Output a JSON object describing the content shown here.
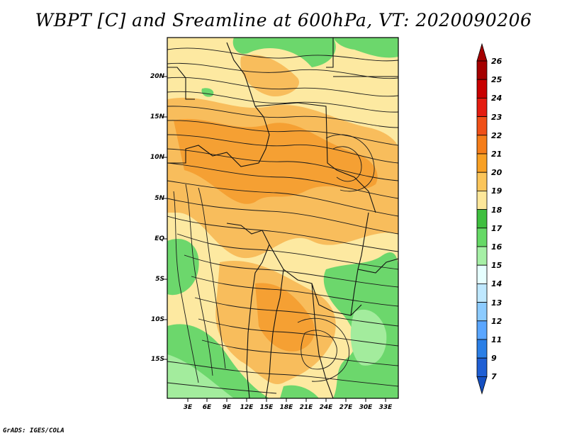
{
  "title": "WBPT [C] and Sreamline at 600hPa, VT: 2020090206",
  "credit": "GrADS: IGES/COLA",
  "lat_ticks": [
    "20N",
    "15N",
    "10N",
    "5N",
    "EQ",
    "5S",
    "10S",
    "15S"
  ],
  "lon_ticks": [
    "3E",
    "6E",
    "9E",
    "12E",
    "15E",
    "18E",
    "21E",
    "24E",
    "27E",
    "30E",
    "33E"
  ],
  "colorbar": {
    "labels": [
      "26",
      "25",
      "24",
      "23",
      "22",
      "21",
      "20",
      "19",
      "18",
      "17",
      "16",
      "15",
      "14",
      "13",
      "12",
      "11",
      "9",
      "7"
    ],
    "colors": [
      "#a50000",
      "#c80000",
      "#e41c10",
      "#f05018",
      "#f57d1a",
      "#f8a024",
      "#fbc55a",
      "#fde79a",
      "#3fbf3f",
      "#66d966",
      "#a6f0a6",
      "#e6ffff",
      "#bfe8ff",
      "#8ccbff",
      "#5aa6ff",
      "#2b7fe6",
      "#1f5fd4",
      "#1550c2"
    ]
  },
  "palette": {
    "orange_dark": "#f5a033",
    "orange": "#f8bd5c",
    "yellow": "#fde9a1",
    "green": "#6cd76c",
    "green_light": "#a3ec9d",
    "stream": "#1a1a1a"
  }
}
